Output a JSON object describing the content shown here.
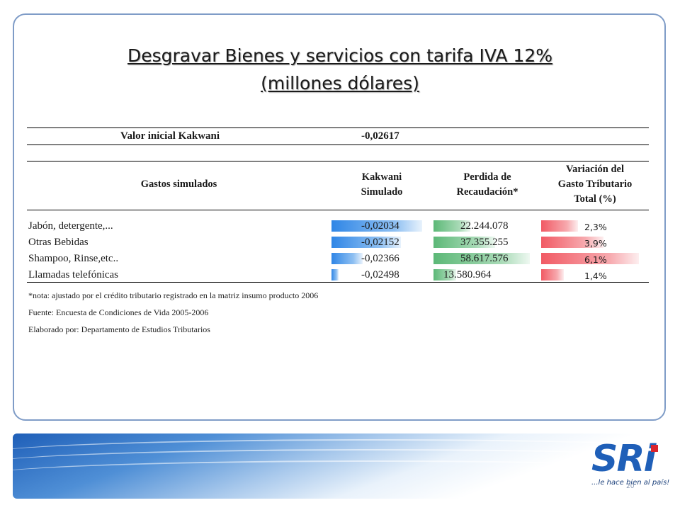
{
  "title": {
    "line1": "Desgravar Bienes y servicios con tarifa IVA 12%",
    "line2": "(millones dólares)"
  },
  "kakwani_initial": {
    "label": "Valor inicial Kakwani",
    "value": "-0,02617"
  },
  "headers": {
    "gastos": "Gastos simulados",
    "kakwani_l1": "Kakwani",
    "kakwani_l2": "Simulado",
    "perdida_l1": "Perdida de",
    "perdida_l2": "Recaudación*",
    "variacion_l1": "Variación del",
    "variacion_l2": "Gasto Tributario",
    "variacion_l3": "Total (%)"
  },
  "rows": [
    {
      "label": "Jabón, detergente,...",
      "kakwani": "-0,02034",
      "perdida": "22.244.078",
      "variacion": "2,3%",
      "kakwani_num": -0.02034,
      "perdida_num": 22244078,
      "variacion_num": 2.3
    },
    {
      "label": "Otras Bebidas",
      "kakwani": "-0,02152",
      "perdida": "37.355.255",
      "variacion": "3,9%",
      "kakwani_num": -0.02152,
      "perdida_num": 37355255,
      "variacion_num": 3.9
    },
    {
      "label": "Shampoo, Rinse,etc..",
      "kakwani": "-0,02366",
      "perdida": "58.617.576",
      "variacion": "6,1%",
      "kakwani_num": -0.02366,
      "perdida_num": 58617576,
      "variacion_num": 6.1
    },
    {
      "label": "Llamadas telefónicas",
      "kakwani": "-0,02498",
      "perdida": "13.580.964",
      "variacion": "1,4%",
      "kakwani_num": -0.02498,
      "perdida_num": 13580964,
      "variacion_num": 1.4
    }
  ],
  "notes": {
    "nota": "*nota: ajustado  por el crédito tributario registrado en la matriz  insumo producto 2006",
    "fuente": "Fuente: Encuesta de Condiciones de Vida 2005-2006",
    "elaborado": "Elaborado por: Departamento de Estudios Tributarios"
  },
  "logo": {
    "text": "SRi",
    "tagline": "...le hace bien al país!"
  },
  "page_number": "20",
  "colors": {
    "kakwani_bar": "#2f86e6",
    "perdida_bar": "#5cb877",
    "variacion_bar": "#f15a64",
    "brand_blue": "#1f5fb8",
    "brand_red": "#d9252e"
  }
}
